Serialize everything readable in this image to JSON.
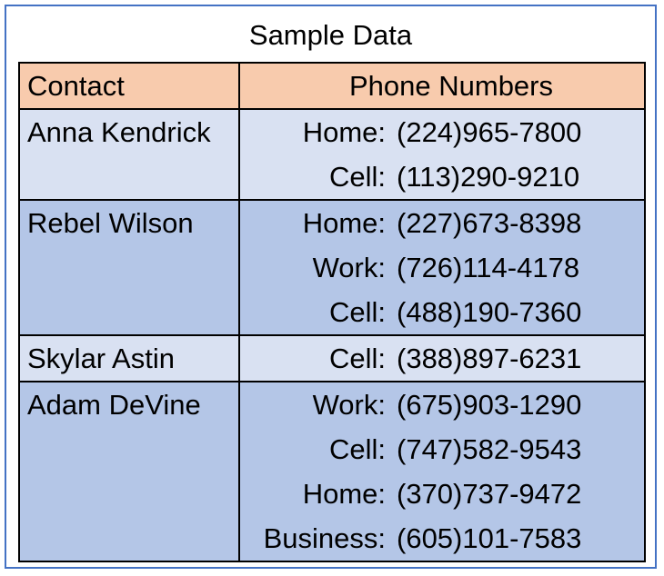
{
  "title": "Sample Data",
  "headers": {
    "contact": "Contact",
    "phones": "Phone Numbers"
  },
  "contacts": [
    {
      "name": "Anna Kendrick",
      "phones": [
        {
          "type": "Home:",
          "number": "(224)965-7800"
        },
        {
          "type": "Cell:",
          "number": "(113)290-9210"
        }
      ]
    },
    {
      "name": "Rebel Wilson",
      "phones": [
        {
          "type": "Home:",
          "number": "(227)673-8398"
        },
        {
          "type": "Work:",
          "number": "(726)114-4178"
        },
        {
          "type": "Cell:",
          "number": "(488)190-7360"
        }
      ]
    },
    {
      "name": "Skylar Astin",
      "phones": [
        {
          "type": "Cell:",
          "number": "(388)897-6231"
        }
      ]
    },
    {
      "name": "Adam DeVine",
      "phones": [
        {
          "type": "Work:",
          "number": "(675)903-1290"
        },
        {
          "type": "Cell:",
          "number": "(747)582-9543"
        },
        {
          "type": "Home:",
          "number": "(370)737-9472"
        },
        {
          "type": "Business:",
          "number": "(605)101-7583"
        }
      ]
    }
  ],
  "colors": {
    "header_fill": "#f8cbad",
    "row_light": "#d9e1f2",
    "row_dark": "#b4c6e7",
    "frame_border": "#4472c4"
  }
}
